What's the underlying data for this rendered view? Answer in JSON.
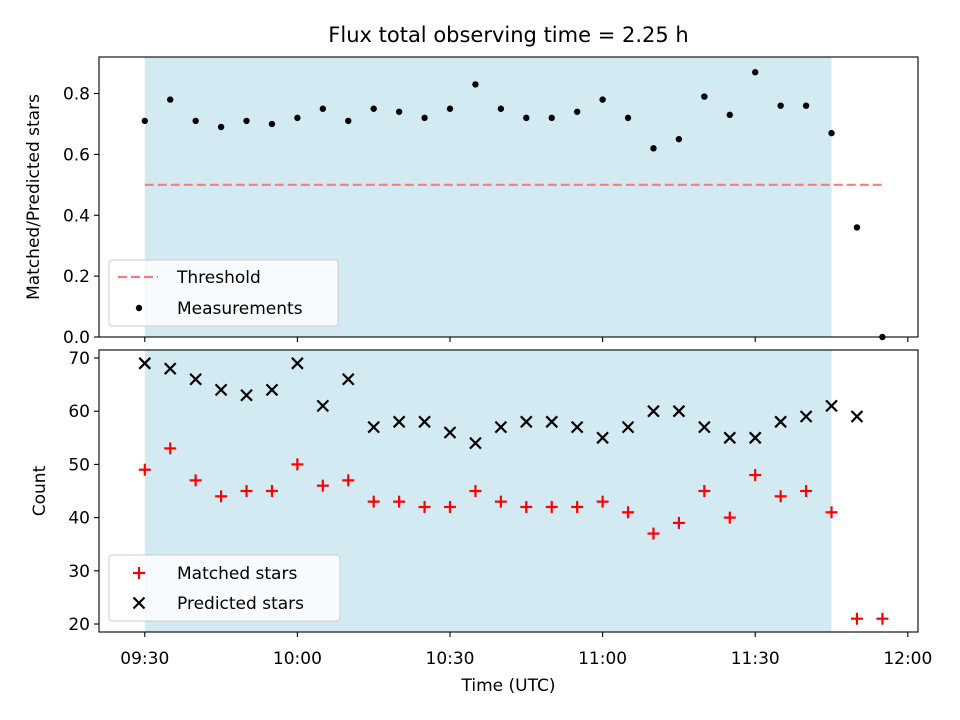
{
  "chart_data": [
    {
      "type": "scatter",
      "title": "Flux total observing time = 2.25 h",
      "ylabel": "Matched/Predicted stars",
      "xlabel": "",
      "xlim": [
        "09:21",
        "12:02"
      ],
      "ylim": [
        0,
        0.92
      ],
      "yticks": [
        0.0,
        0.2,
        0.4,
        0.6,
        0.8
      ],
      "ytick_labels": [
        "0.0",
        "0.2",
        "0.4",
        "0.6",
        "0.8"
      ],
      "shaded_span": {
        "from": "09:30",
        "to": "11:45",
        "color": "#add8e6"
      },
      "threshold": {
        "name": "Threshold",
        "value": 0.5,
        "from": "09:30",
        "to": "11:55",
        "color": "#f08080",
        "style": "dashed"
      },
      "series": [
        {
          "name": "Measurements",
          "marker": "dot",
          "color": "#000000",
          "x": [
            "09:30",
            "09:35",
            "09:40",
            "09:45",
            "09:50",
            "09:55",
            "10:00",
            "10:05",
            "10:10",
            "10:15",
            "10:20",
            "10:25",
            "10:30",
            "10:35",
            "10:40",
            "10:45",
            "10:50",
            "10:55",
            "11:00",
            "11:05",
            "11:10",
            "11:15",
            "11:20",
            "11:25",
            "11:30",
            "11:35",
            "11:40",
            "11:45",
            "11:50",
            "11:55"
          ],
          "y": [
            0.71,
            0.78,
            0.71,
            0.69,
            0.71,
            0.7,
            0.72,
            0.75,
            0.71,
            0.75,
            0.74,
            0.72,
            0.75,
            0.83,
            0.75,
            0.72,
            0.72,
            0.74,
            0.78,
            0.72,
            0.62,
            0.65,
            0.79,
            0.73,
            0.87,
            0.76,
            0.76,
            0.67,
            0.36,
            0.0
          ]
        }
      ],
      "legend": {
        "placement": "lower-left",
        "entries": [
          "Threshold",
          "Measurements"
        ]
      },
      "grid": false
    },
    {
      "type": "scatter",
      "title": "",
      "ylabel": "Count",
      "xlabel": "Time (UTC)",
      "xlim": [
        "09:21",
        "12:02"
      ],
      "ylim": [
        18.5,
        71.5
      ],
      "yticks": [
        20,
        30,
        40,
        50,
        60,
        70
      ],
      "ytick_labels": [
        "20",
        "30",
        "40",
        "50",
        "60",
        "70"
      ],
      "xticks": [
        "09:30",
        "10:00",
        "10:30",
        "11:00",
        "11:30",
        "12:00"
      ],
      "xtick_labels": [
        "09:30",
        "10:00",
        "10:30",
        "11:00",
        "11:30",
        "12:00"
      ],
      "shaded_span": {
        "from": "09:30",
        "to": "11:45",
        "color": "#add8e6"
      },
      "series": [
        {
          "name": "Matched stars",
          "marker": "plus",
          "color": "#ff0000",
          "x": [
            "09:30",
            "09:35",
            "09:40",
            "09:45",
            "09:50",
            "09:55",
            "10:00",
            "10:05",
            "10:10",
            "10:15",
            "10:20",
            "10:25",
            "10:30",
            "10:35",
            "10:40",
            "10:45",
            "10:50",
            "10:55",
            "11:00",
            "11:05",
            "11:10",
            "11:15",
            "11:20",
            "11:25",
            "11:30",
            "11:35",
            "11:40",
            "11:45",
            "11:50",
            "11:55"
          ],
          "y": [
            49,
            53,
            47,
            44,
            45,
            45,
            50,
            46,
            47,
            43,
            43,
            42,
            42,
            45,
            43,
            42,
            42,
            42,
            43,
            41,
            37,
            39,
            45,
            40,
            48,
            44,
            45,
            41,
            21,
            21
          ]
        },
        {
          "name": "Predicted stars",
          "marker": "x",
          "color": "#000000",
          "x": [
            "09:30",
            "09:35",
            "09:40",
            "09:45",
            "09:50",
            "09:55",
            "10:00",
            "10:05",
            "10:10",
            "10:15",
            "10:20",
            "10:25",
            "10:30",
            "10:35",
            "10:40",
            "10:45",
            "10:50",
            "10:55",
            "11:00",
            "11:05",
            "11:10",
            "11:15",
            "11:20",
            "11:25",
            "11:30",
            "11:35",
            "11:40",
            "11:45",
            "11:50"
          ],
          "y": [
            69,
            68,
            66,
            64,
            63,
            64,
            69,
            61,
            66,
            57,
            58,
            58,
            56,
            54,
            57,
            58,
            58,
            57,
            55,
            57,
            60,
            60,
            57,
            55,
            55,
            58,
            59,
            61,
            59
          ]
        }
      ],
      "legend": {
        "placement": "lower-left",
        "entries": [
          "Matched stars",
          "Predicted stars"
        ]
      },
      "grid": false
    }
  ]
}
